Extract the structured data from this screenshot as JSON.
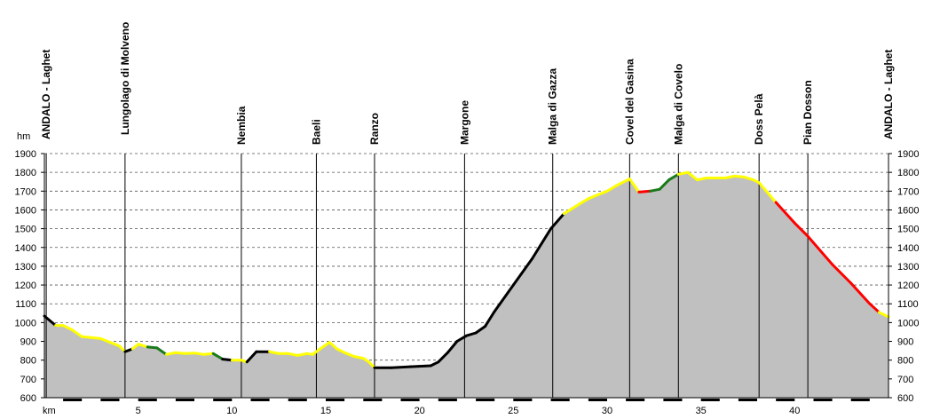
{
  "chart_data": {
    "type": "area",
    "title": "",
    "xlabel": "km",
    "ylabel": "hm",
    "xlim": [
      0,
      45
    ],
    "ylim": [
      600,
      1900
    ],
    "x_ticks": [
      5,
      10,
      15,
      20,
      25,
      30,
      35,
      40
    ],
    "y_ticks": [
      600,
      700,
      800,
      900,
      1000,
      1100,
      1200,
      1300,
      1400,
      1500,
      1600,
      1700,
      1800,
      1900
    ],
    "grid": "horizontal-dashed",
    "fill_color": "#c0c0c0",
    "segment_colors": {
      "black": "#000000",
      "yellow": "#ffff00",
      "green": "#1a7a1a",
      "red": "#ff0000"
    },
    "locations": [
      {
        "name": "ANDALO - Laghet",
        "km": 0.1
      },
      {
        "name": "Lungolago di Molveno",
        "km": 4.3
      },
      {
        "name": "Nembia",
        "km": 10.5
      },
      {
        "name": "Baeli",
        "km": 14.5
      },
      {
        "name": "Ranzo",
        "km": 17.6
      },
      {
        "name": "Margone",
        "km": 22.4
      },
      {
        "name": "Malga di Gazza",
        "km": 27.1
      },
      {
        "name": "Covel del Gasina",
        "km": 31.2
      },
      {
        "name": "Malga di Covelo",
        "km": 33.8
      },
      {
        "name": "Doss Pelà",
        "km": 38.1
      },
      {
        "name": "Pian Dosson",
        "km": 40.7
      },
      {
        "name": "ANDALO - Laghet",
        "km": 45.0
      }
    ],
    "profile": {
      "x": [
        0,
        0.6,
        1.0,
        1.5,
        2.0,
        2.5,
        3.0,
        3.5,
        4.0,
        4.3,
        4.7,
        5.0,
        5.5,
        6.0,
        6.5,
        7.0,
        7.5,
        8.0,
        8.5,
        9.0,
        9.5,
        10.0,
        10.5,
        10.8,
        11.3,
        12.0,
        12.5,
        13.0,
        13.5,
        14.0,
        14.3,
        14.7,
        15.2,
        15.6,
        16.0,
        16.5,
        17.0,
        17.3,
        17.6,
        18.5,
        19.5,
        20.6,
        21.0,
        21.5,
        22.0,
        22.5,
        23.0,
        23.5,
        24.0,
        25.0,
        26.0,
        27.0,
        27.7,
        28.5,
        29.0,
        29.5,
        30.0,
        30.5,
        31.0,
        31.2,
        31.7,
        32.3,
        32.8,
        33.3,
        33.8,
        34.3,
        34.8,
        35.3,
        35.8,
        36.3,
        36.8,
        37.3,
        37.8,
        38.1,
        39.0,
        40.0,
        40.7,
        42.0,
        43.0,
        44.0,
        44.5,
        45.0
      ],
      "y": [
        1035,
        985,
        985,
        960,
        925,
        920,
        915,
        895,
        875,
        845,
        860,
        885,
        870,
        865,
        830,
        840,
        835,
        838,
        830,
        835,
        805,
        800,
        800,
        790,
        845,
        845,
        835,
        835,
        825,
        835,
        830,
        860,
        895,
        860,
        840,
        820,
        810,
        790,
        760,
        760,
        765,
        770,
        790,
        840,
        900,
        930,
        945,
        980,
        1060,
        1200,
        1340,
        1500,
        1580,
        1630,
        1660,
        1680,
        1700,
        1730,
        1755,
        1765,
        1695,
        1700,
        1710,
        1760,
        1790,
        1800,
        1760,
        1770,
        1770,
        1770,
        1780,
        1775,
        1760,
        1745,
        1640,
        1530,
        1460,
        1310,
        1210,
        1100,
        1055,
        1030
      ],
      "segment": [
        "black",
        "yellow",
        "yellow",
        "yellow",
        "yellow",
        "yellow",
        "yellow",
        "yellow",
        "yellow",
        "black",
        "yellow",
        "yellow",
        "green",
        "green",
        "yellow",
        "yellow",
        "yellow",
        "yellow",
        "yellow",
        "green",
        "black",
        "yellow",
        "yellow",
        "black",
        "black",
        "yellow",
        "yellow",
        "yellow",
        "yellow",
        "yellow",
        "yellow",
        "yellow",
        "yellow",
        "yellow",
        "yellow",
        "yellow",
        "yellow",
        "yellow",
        "black",
        "black",
        "black",
        "black",
        "black",
        "black",
        "black",
        "black",
        "black",
        "black",
        "black",
        "black",
        "black",
        "black",
        "yellow",
        "yellow",
        "yellow",
        "yellow",
        "yellow",
        "yellow",
        "yellow",
        "yellow",
        "red",
        "green",
        "green",
        "green",
        "yellow",
        "yellow",
        "yellow",
        "yellow",
        "yellow",
        "yellow",
        "yellow",
        "yellow",
        "yellow",
        "yellow",
        "red",
        "red",
        "red",
        "red",
        "red",
        "red",
        "yellow",
        "black"
      ]
    }
  }
}
